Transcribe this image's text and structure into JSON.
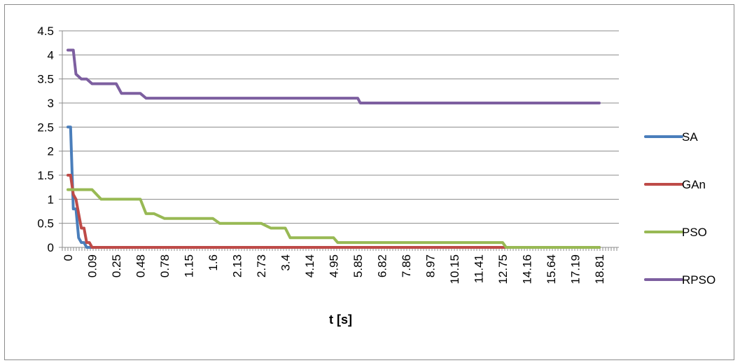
{
  "chart_data": {
    "type": "line",
    "title": "",
    "xlabel": "t [s]",
    "ylabel": "",
    "ylim": [
      0,
      4.5
    ],
    "yticks": [
      0,
      0.5,
      1,
      1.5,
      2,
      2.5,
      3,
      3.5,
      4,
      4.5
    ],
    "ytick_labels": [
      "0",
      "0.5",
      "1",
      "1.5",
      "2",
      "2.5",
      "3",
      "3.5",
      "4",
      "4.5"
    ],
    "xtick_labels": [
      "0",
      "0.09",
      "0.25",
      "0.48",
      "0.78",
      "1.15",
      "1.6",
      "2.13",
      "2.73",
      "3.4",
      "4.14",
      "4.95",
      "5.85",
      "6.82",
      "7.86",
      "8.97",
      "10.15",
      "11.41",
      "12.75",
      "14.16",
      "15.64",
      "17.19",
      "18.81"
    ],
    "grid": true,
    "legend_position": "right",
    "series": [
      {
        "name": "SA",
        "color": "#4a7ebb",
        "x": [
          "0",
          "0.01",
          "0.02",
          "0.03",
          "0.04",
          "0.05",
          "0.06",
          "0.07",
          "0.09",
          "0.25",
          "18.81"
        ],
        "values": [
          2.5,
          2.5,
          0.8,
          0.8,
          0.2,
          0.1,
          0.1,
          0.0,
          0.0,
          0.0,
          0.0
        ]
      },
      {
        "name": "GAn",
        "color": "#be4b48",
        "x": [
          "0",
          "0.01",
          "0.02",
          "0.03",
          "0.04",
          "0.05",
          "0.06",
          "0.07",
          "0.08",
          "0.09",
          "0.1",
          "18.81"
        ],
        "values": [
          1.5,
          1.5,
          1.1,
          1.0,
          0.7,
          0.4,
          0.4,
          0.1,
          0.1,
          0.0,
          0.0,
          0.0
        ]
      },
      {
        "name": "PSO",
        "color": "#98b954",
        "x": [
          "0",
          "0.09",
          "0.15",
          "0.25",
          "0.48",
          "0.55",
          "0.65",
          "0.78",
          "1.6",
          "1.75",
          "2.73",
          "3.0",
          "3.4",
          "3.55",
          "4.95",
          "5.1",
          "12.75",
          "12.95",
          "18.81"
        ],
        "values": [
          1.2,
          1.2,
          1.0,
          1.0,
          1.0,
          0.7,
          0.7,
          0.6,
          0.6,
          0.5,
          0.5,
          0.4,
          0.4,
          0.2,
          0.2,
          0.1,
          0.1,
          0.0,
          0.0
        ]
      },
      {
        "name": "RPSO",
        "color": "#7d5fa0",
        "x": [
          "0",
          "0.01",
          "0.02",
          "0.03",
          "0.05",
          "0.07",
          "0.09",
          "0.15",
          "0.25",
          "0.3",
          "0.48",
          "0.55",
          "5.85",
          "5.95",
          "18.81"
        ],
        "values": [
          4.1,
          4.1,
          4.1,
          3.6,
          3.5,
          3.5,
          3.4,
          3.4,
          3.4,
          3.2,
          3.2,
          3.1,
          3.1,
          3.0,
          3.0
        ]
      }
    ]
  }
}
